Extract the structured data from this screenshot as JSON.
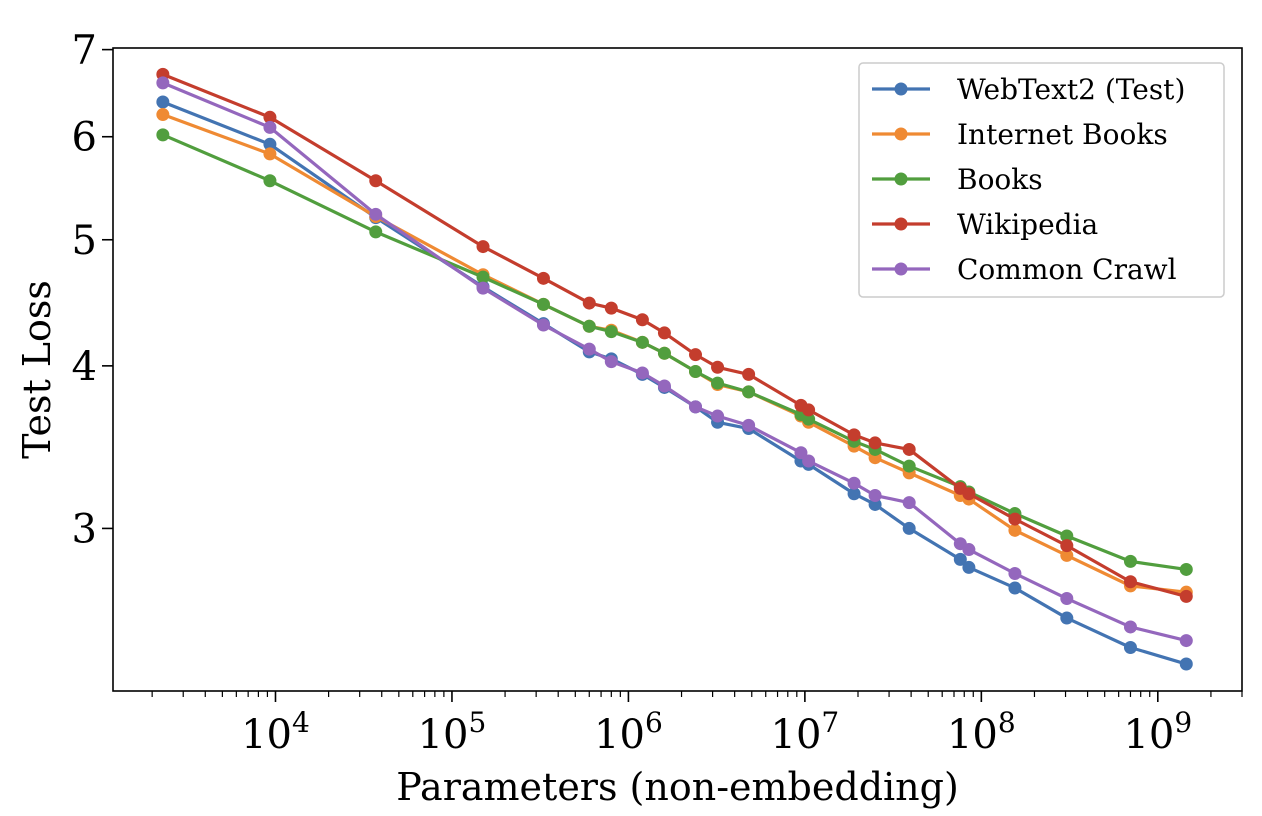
{
  "chart_data": {
    "type": "line",
    "xlabel": "Parameters (non-embedding)",
    "ylabel": "Test Loss",
    "xscale": "log",
    "yscale": "log",
    "xlim": [
      1200,
      3000000000
    ],
    "ylim": [
      2.25,
      7.02
    ],
    "x_ticks": [
      {
        "value": 10000,
        "base": "10",
        "exp": "4"
      },
      {
        "value": 100000,
        "base": "10",
        "exp": "5"
      },
      {
        "value": 1000000,
        "base": "10",
        "exp": "6"
      },
      {
        "value": 10000000,
        "base": "10",
        "exp": "7"
      },
      {
        "value": 100000000,
        "base": "10",
        "exp": "8"
      },
      {
        "value": 1000000000,
        "base": "10",
        "exp": "9"
      }
    ],
    "y_ticks": [
      {
        "value": 3,
        "label": "3"
      },
      {
        "value": 4,
        "label": "4"
      },
      {
        "value": 5,
        "label": "5"
      },
      {
        "value": 6,
        "label": "6"
      },
      {
        "value": 7,
        "label": "7"
      }
    ],
    "grid": false,
    "legend_position": "top-right",
    "series": [
      {
        "name": "WebText2 (Test)",
        "color": "#4374b2",
        "x": [
          2300,
          9300,
          37000,
          150000,
          330000,
          600000,
          800000,
          1200000,
          1600000,
          2400000,
          3200000,
          4800000,
          9500000,
          10500000,
          19000000,
          25000000,
          39000000,
          76000000,
          85000000,
          155000000,
          305000000,
          700000000,
          1450000000
        ],
        "y": [
          6.38,
          5.92,
          5.2,
          4.6,
          4.31,
          4.1,
          4.05,
          3.94,
          3.85,
          3.72,
          3.62,
          3.58,
          3.38,
          3.36,
          3.19,
          3.13,
          3.0,
          2.84,
          2.8,
          2.7,
          2.56,
          2.43,
          2.36
        ]
      },
      {
        "name": "Internet Books",
        "color": "#ef8a33",
        "x": [
          2300,
          9300,
          37000,
          150000,
          330000,
          600000,
          800000,
          1200000,
          1600000,
          2400000,
          3200000,
          4800000,
          9500000,
          10500000,
          19000000,
          25000000,
          39000000,
          76000000,
          85000000,
          155000000,
          305000000,
          700000000,
          1450000000
        ],
        "y": [
          6.24,
          5.82,
          5.21,
          4.7,
          4.46,
          4.29,
          4.26,
          4.17,
          4.09,
          3.96,
          3.87,
          3.82,
          3.66,
          3.62,
          3.47,
          3.4,
          3.31,
          3.18,
          3.16,
          2.99,
          2.86,
          2.71,
          2.68
        ]
      },
      {
        "name": "Books",
        "color": "#519e3e",
        "x": [
          2300,
          9300,
          37000,
          150000,
          330000,
          600000,
          800000,
          1200000,
          1600000,
          2400000,
          3200000,
          4800000,
          9500000,
          10500000,
          19000000,
          25000000,
          39000000,
          76000000,
          85000000,
          155000000,
          305000000,
          700000000,
          1450000000
        ],
        "y": [
          6.02,
          5.55,
          5.07,
          4.68,
          4.46,
          4.29,
          4.25,
          4.17,
          4.09,
          3.96,
          3.88,
          3.82,
          3.67,
          3.64,
          3.5,
          3.45,
          3.35,
          3.23,
          3.2,
          3.08,
          2.96,
          2.83,
          2.79
        ]
      },
      {
        "name": "Wikipedia",
        "color": "#c43d2d",
        "x": [
          2300,
          9300,
          37000,
          150000,
          330000,
          600000,
          800000,
          1200000,
          1600000,
          2400000,
          3200000,
          4800000,
          9500000,
          10500000,
          19000000,
          25000000,
          39000000,
          76000000,
          85000000,
          155000000,
          305000000,
          700000000,
          1450000000
        ],
        "y": [
          6.7,
          6.21,
          5.55,
          4.94,
          4.67,
          4.47,
          4.43,
          4.34,
          4.24,
          4.08,
          3.99,
          3.94,
          3.73,
          3.7,
          3.54,
          3.49,
          3.45,
          3.22,
          3.19,
          3.05,
          2.91,
          2.73,
          2.66
        ]
      },
      {
        "name": "Common Crawl",
        "color": "#9467bd",
        "x": [
          2300,
          9300,
          37000,
          150000,
          330000,
          600000,
          800000,
          1200000,
          1600000,
          2400000,
          3200000,
          4800000,
          9500000,
          10500000,
          19000000,
          25000000,
          39000000,
          76000000,
          85000000,
          155000000,
          305000000,
          700000000,
          1450000000
        ],
        "y": [
          6.6,
          6.1,
          5.23,
          4.59,
          4.3,
          4.12,
          4.03,
          3.95,
          3.86,
          3.72,
          3.66,
          3.6,
          3.43,
          3.38,
          3.25,
          3.18,
          3.14,
          2.92,
          2.89,
          2.77,
          2.65,
          2.52,
          2.46
        ]
      }
    ]
  }
}
